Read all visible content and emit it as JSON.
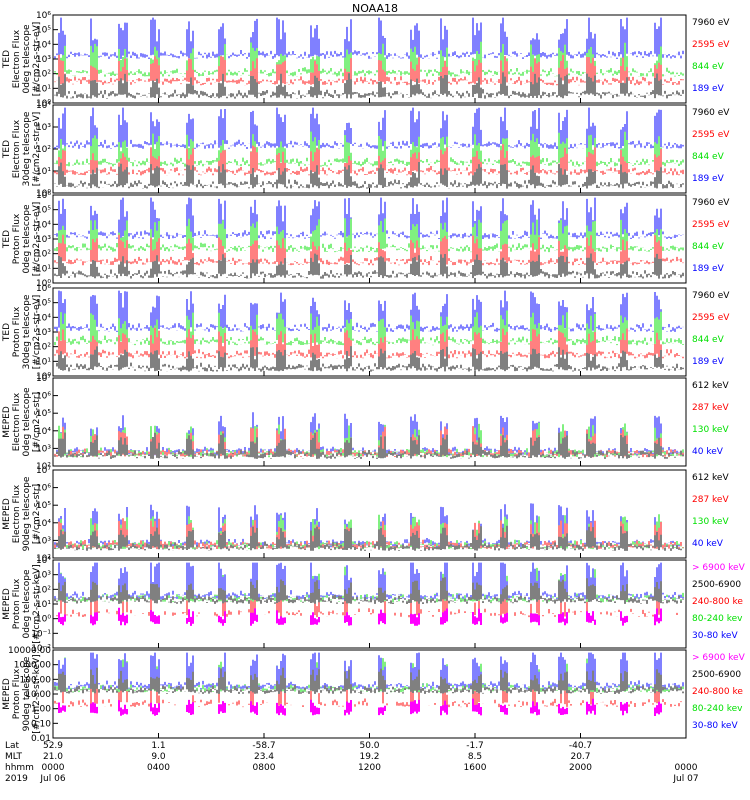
{
  "title": "NOAA18",
  "colors": {
    "black": "#000000",
    "blue": "#0000ff",
    "green": "#00e000",
    "red": "#ff0000",
    "magenta": "#ff00ff"
  },
  "chart_data": [
    {
      "type": "line",
      "ylabel": [
        "TED",
        "Electron Flux",
        "0deg telescope",
        "[#/cm2-s-str-eV]"
      ],
      "yscale": "log",
      "ylim": [
        1,
        1000000
      ],
      "ytick_labels": [
        "10⁰",
        "10¹",
        "10²",
        "10³",
        "10⁴",
        "10⁵",
        "10⁶"
      ],
      "grid": false,
      "legend_placement": "right",
      "series": [
        {
          "name": "7960 eV",
          "color": "black"
        },
        {
          "name": "2595 eV",
          "color": "red"
        },
        {
          "name": "844 eV",
          "color": "green"
        },
        {
          "name": "189 eV",
          "color": "blue"
        }
      ]
    },
    {
      "type": "line",
      "ylabel": [
        "TED",
        "Electron Flux",
        "30deg telescope",
        "[#/cm2-s-str-eV]"
      ],
      "yscale": "log",
      "ylim": [
        1,
        100000
      ],
      "ytick_labels": [
        "10⁰",
        "10¹",
        "10²",
        "10³",
        "10⁴"
      ],
      "grid": false,
      "legend_placement": "right",
      "series": [
        {
          "name": "7960 eV",
          "color": "black"
        },
        {
          "name": "2595 eV",
          "color": "red"
        },
        {
          "name": "844 eV",
          "color": "green"
        },
        {
          "name": "189 eV",
          "color": "blue"
        }
      ]
    },
    {
      "type": "line",
      "ylabel": [
        "TED",
        "Proton Flux",
        "0deg telescope",
        "[#/cm2-s-str-eV]"
      ],
      "yscale": "log",
      "ylim": [
        1,
        1000000
      ],
      "ytick_labels": [
        "10⁰",
        "10¹",
        "10²",
        "10³",
        "10⁴",
        "10⁵",
        "10⁶"
      ],
      "grid": false,
      "legend_placement": "right",
      "series": [
        {
          "name": "7960 eV",
          "color": "black"
        },
        {
          "name": "2595 eV",
          "color": "red"
        },
        {
          "name": "844 eV",
          "color": "green"
        },
        {
          "name": "189 eV",
          "color": "blue"
        }
      ]
    },
    {
      "type": "line",
      "ylabel": [
        "TED",
        "Proton Flux",
        "30deg telescope",
        "[#/cm2-s-str-eV]"
      ],
      "yscale": "log",
      "ylim": [
        1,
        1000000
      ],
      "ytick_labels": [
        "10⁰",
        "10¹",
        "10²",
        "10³",
        "10⁴",
        "10⁵",
        "10⁶"
      ],
      "grid": false,
      "legend_placement": "right",
      "series": [
        {
          "name": "7960 eV",
          "color": "black"
        },
        {
          "name": "2595 eV",
          "color": "red"
        },
        {
          "name": "844 eV",
          "color": "green"
        },
        {
          "name": "189 eV",
          "color": "blue"
        }
      ]
    },
    {
      "type": "line",
      "ylabel": [
        "MEPED",
        "Electron Flux",
        "0deg telescope",
        "[#/cm2-s-str]"
      ],
      "yscale": "log",
      "ylim": [
        100,
        10000000
      ],
      "ytick_labels": [
        "10²",
        "10³",
        "10⁴",
        "10⁵",
        "10⁶",
        "10⁷"
      ],
      "grid": false,
      "legend_placement": "right",
      "series": [
        {
          "name": "612 keV",
          "color": "black"
        },
        {
          "name": "287 keV",
          "color": "red"
        },
        {
          "name": "130 keV",
          "color": "green"
        },
        {
          "name": "40 keV",
          "color": "blue"
        }
      ]
    },
    {
      "type": "line",
      "ylabel": [
        "MEPED",
        "Electron Flux",
        "90deg telescope",
        "[#/cm2-s-str]"
      ],
      "yscale": "log",
      "ylim": [
        100,
        10000000
      ],
      "ytick_labels": [
        "10²",
        "10³",
        "10⁴",
        "10⁵",
        "10⁶",
        "10⁷"
      ],
      "grid": false,
      "legend_placement": "right",
      "series": [
        {
          "name": "612 keV",
          "color": "black"
        },
        {
          "name": "287 keV",
          "color": "red"
        },
        {
          "name": "130 keV",
          "color": "green"
        },
        {
          "name": "40 keV",
          "color": "blue"
        }
      ]
    },
    {
      "type": "line",
      "ylabel": [
        "MEPED",
        "Proton Flux",
        "0deg telescope",
        "[#/cm2-s-str-keV]"
      ],
      "yscale": "log",
      "ylim": [
        0.01,
        10000
      ],
      "ytick_labels": [
        "10⁻²",
        "10⁻¹",
        "10⁰",
        "10¹",
        "10²",
        "10³",
        "10⁴"
      ],
      "grid": false,
      "legend_placement": "right",
      "series": [
        {
          "name": "> 6900 keV",
          "color": "magenta"
        },
        {
          "name": "2500-6900",
          "color": "black"
        },
        {
          "name": "240-800 ke",
          "color": "red"
        },
        {
          "name": "80-240 kev",
          "color": "green"
        },
        {
          "name": "30-80 keV",
          "color": "blue"
        }
      ]
    },
    {
      "type": "line",
      "ylabel": [
        "MEPED",
        "Proton Flux",
        "90deg telescope",
        "[#/cm2-s-str-keV]"
      ],
      "yscale": "log",
      "ylim": [
        0.01,
        10000
      ],
      "ytick_labels": [
        "0.01",
        "0.10",
        "1.00",
        "10.00",
        "100.00",
        "1000.00",
        "10000.00"
      ],
      "grid": false,
      "legend_placement": "right",
      "series": [
        {
          "name": "> 6900 keV",
          "color": "magenta"
        },
        {
          "name": "2500-6900",
          "color": "black"
        },
        {
          "name": "240-800 ke",
          "color": "red"
        },
        {
          "name": "80-240 kev",
          "color": "green"
        },
        {
          "name": "30-80 keV",
          "color": "blue"
        }
      ]
    }
  ],
  "x_axis": {
    "row_labels": [
      "Lat",
      "MLT",
      "hhmm",
      "2019"
    ],
    "ticks": [
      {
        "lat": "52.9",
        "mlt": "21.0",
        "hhmm": "0000",
        "date": "Jul 06"
      },
      {
        "lat": "1.1",
        "mlt": "9.0",
        "hhmm": "0400",
        "date": ""
      },
      {
        "lat": "-58.7",
        "mlt": "23.4",
        "hhmm": "0800",
        "date": ""
      },
      {
        "lat": "50.0",
        "mlt": "19.2",
        "hhmm": "1200",
        "date": ""
      },
      {
        "lat": "-1.7",
        "mlt": "8.5",
        "hhmm": "1600",
        "date": ""
      },
      {
        "lat": "-40.7",
        "mlt": "20.7",
        "hhmm": "2000",
        "date": ""
      },
      {
        "lat": "",
        "mlt": "",
        "hhmm": "0000",
        "date": "Jul 07"
      }
    ]
  }
}
